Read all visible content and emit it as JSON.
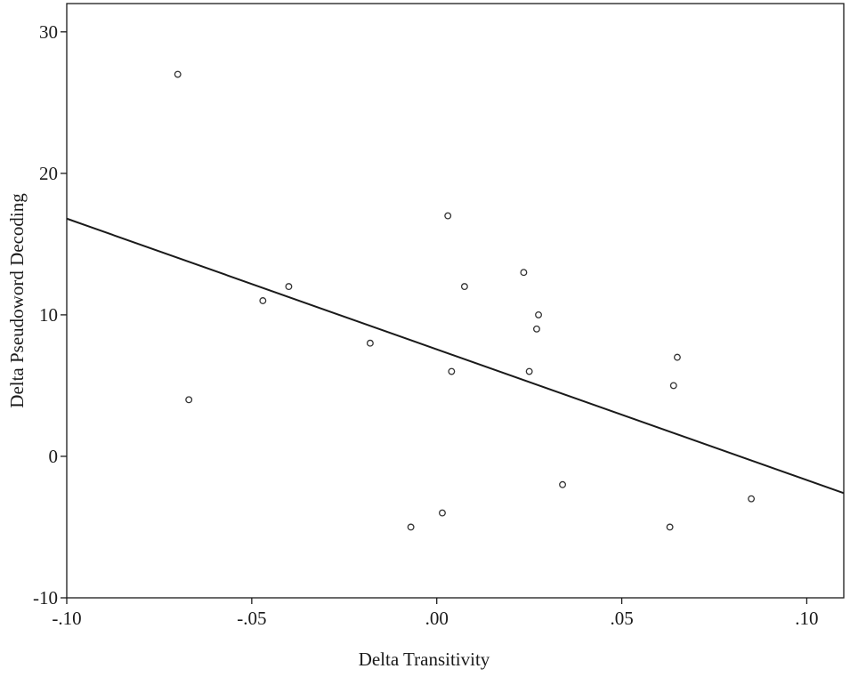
{
  "chart_data": {
    "type": "scatter",
    "title": "",
    "xlabel": "Delta Transitivity",
    "ylabel": "Delta Pseudoword Decoding",
    "xlim": [
      -0.1,
      0.11
    ],
    "ylim": [
      -10,
      32
    ],
    "x_ticks": [
      {
        "value": -0.1,
        "label": "-.10"
      },
      {
        "value": -0.05,
        "label": "-.05"
      },
      {
        "value": 0.0,
        "label": ".00"
      },
      {
        "value": 0.05,
        "label": ".05"
      },
      {
        "value": 0.1,
        "label": ".10"
      }
    ],
    "y_ticks": [
      {
        "value": -10,
        "label": "-10"
      },
      {
        "value": 0,
        "label": "0"
      },
      {
        "value": 10,
        "label": "10"
      },
      {
        "value": 20,
        "label": "20"
      },
      {
        "value": 30,
        "label": "30"
      }
    ],
    "grid": false,
    "points": [
      {
        "x": -0.07,
        "y": 27
      },
      {
        "x": -0.067,
        "y": 4
      },
      {
        "x": -0.047,
        "y": 11
      },
      {
        "x": -0.04,
        "y": 12
      },
      {
        "x": -0.018,
        "y": 8
      },
      {
        "x": -0.007,
        "y": -5
      },
      {
        "x": 0.0015,
        "y": -4
      },
      {
        "x": 0.003,
        "y": 17
      },
      {
        "x": 0.004,
        "y": 6
      },
      {
        "x": 0.0075,
        "y": 12
      },
      {
        "x": 0.0235,
        "y": 13
      },
      {
        "x": 0.025,
        "y": 6
      },
      {
        "x": 0.027,
        "y": 9
      },
      {
        "x": 0.0275,
        "y": 10
      },
      {
        "x": 0.034,
        "y": -2
      },
      {
        "x": 0.063,
        "y": -5
      },
      {
        "x": 0.064,
        "y": 5
      },
      {
        "x": 0.065,
        "y": 7
      },
      {
        "x": 0.085,
        "y": -3
      }
    ],
    "fit_line": {
      "x": [
        -0.1,
        0.11
      ],
      "y": [
        16.8,
        -2.6
      ]
    },
    "colors": {
      "line": "#1a1a1a",
      "marker_stroke": "#333333",
      "frame": "#1a1a1a"
    }
  }
}
